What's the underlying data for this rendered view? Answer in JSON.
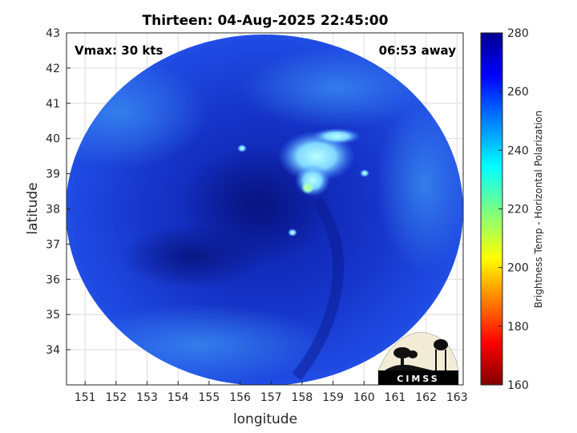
{
  "title": "Thirteen: 04-Aug-2025 22:45:00",
  "annotations": {
    "vmax": "Vmax: 30 kts",
    "time_away": "06:53 away"
  },
  "axes": {
    "xlabel": "longitude",
    "ylabel": "latitude",
    "xlim": [
      150.4,
      163.2
    ],
    "ylim": [
      33.0,
      43.0
    ],
    "xticks": [
      "151",
      "152",
      "153",
      "154",
      "155",
      "156",
      "157",
      "158",
      "159",
      "160",
      "161",
      "162",
      "163"
    ],
    "yticks": [
      "34",
      "35",
      "36",
      "37",
      "38",
      "39",
      "40",
      "41",
      "42",
      "43"
    ],
    "grid": true
  },
  "colorbar": {
    "label": "Brightness Temp - Horizontal Polarization",
    "range": [
      160,
      280
    ],
    "ticks": [
      "160",
      "180",
      "200",
      "220",
      "240",
      "260",
      "280"
    ],
    "colormap": "jet"
  },
  "logo": {
    "text": "CIMSS"
  },
  "colors": {
    "disk_base": "#1f45e0",
    "cold_cloud": "#9ef2ff"
  }
}
